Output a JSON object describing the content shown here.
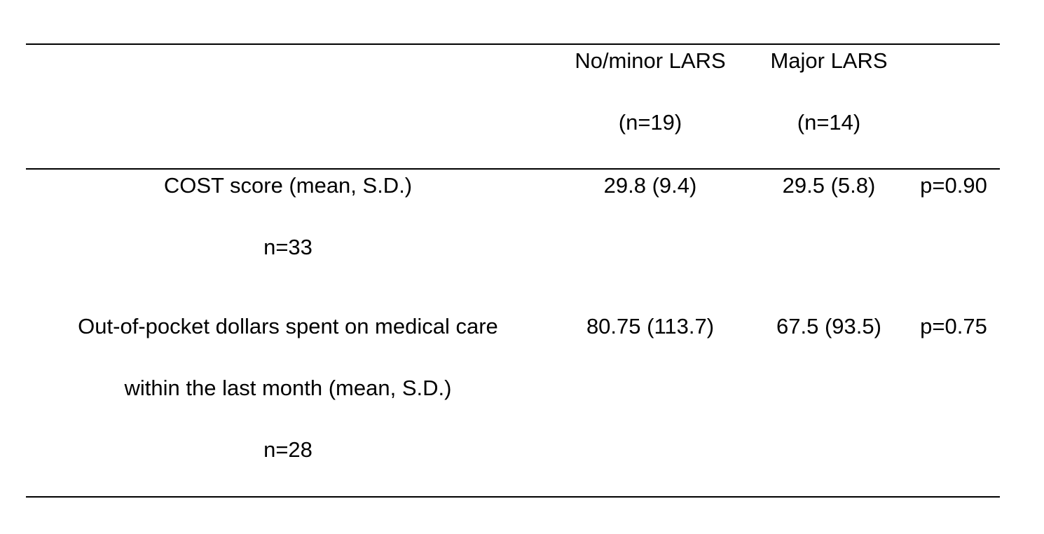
{
  "header": {
    "col_minor": {
      "label": "No/minor LARS",
      "n": "(n=19)"
    },
    "col_major": {
      "label": "Major LARS",
      "n": "(n=14)"
    }
  },
  "rows": [
    {
      "label_lines": [
        "COST score (mean, S.D.)"
      ],
      "n": "n=33",
      "minor": "29.8 (9.4)",
      "major": "29.5 (5.8)",
      "p": "p=0.90"
    },
    {
      "label_lines": [
        "Out-of-pocket dollars spent on medical care",
        "within the last month (mean, S.D.)"
      ],
      "n": "n=28",
      "minor": "80.75 (113.7)",
      "major": "67.5 (93.5)",
      "p": "p=0.75"
    }
  ]
}
